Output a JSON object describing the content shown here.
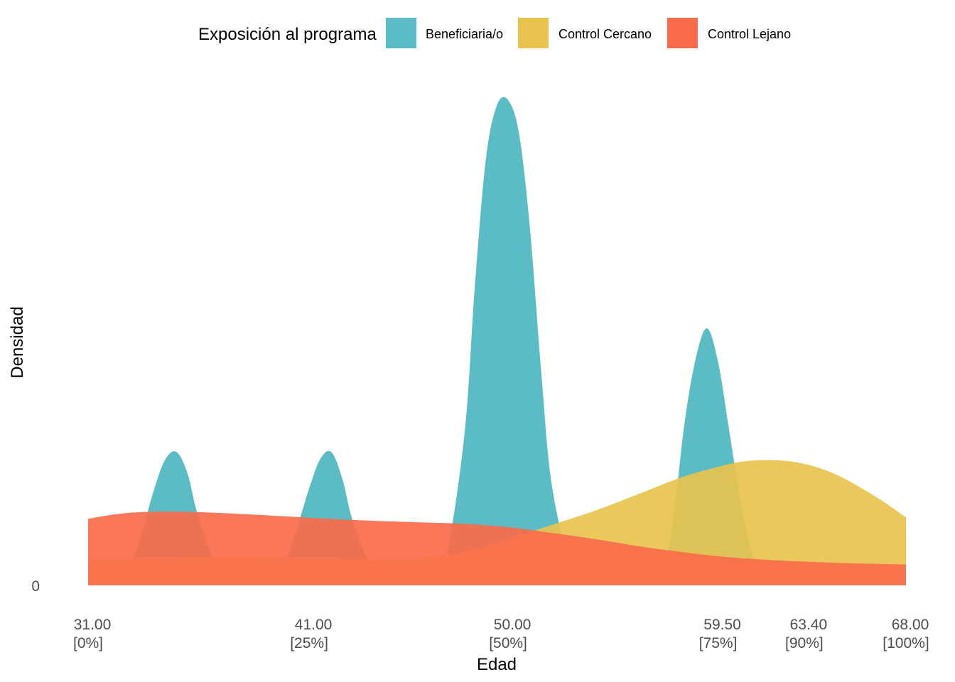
{
  "chart_data": {
    "type": "area",
    "title": "",
    "xlabel": "Edad",
    "ylabel": "Densidad",
    "legend": {
      "title": "Exposición al programa",
      "position": "top"
    },
    "xlim": [
      31.0,
      68.0
    ],
    "ylim": [
      0,
      1.0
    ],
    "y_ticks": [
      {
        "value": 0,
        "label": "0"
      }
    ],
    "x_ticks": [
      {
        "value": 31.0,
        "label": "31.00",
        "sublabel": "[0%]"
      },
      {
        "value": 41.0,
        "label": "41.00",
        "sublabel": "[25%]"
      },
      {
        "value": 50.0,
        "label": "50.00",
        "sublabel": "[50%]"
      },
      {
        "value": 59.5,
        "label": "59.50",
        "sublabel": "[75%]"
      },
      {
        "value": 63.4,
        "label": "63.40",
        "sublabel": "[90%]"
      },
      {
        "value": 68.0,
        "label": "68.00",
        "sublabel": "[100%]"
      }
    ],
    "grid": false,
    "series": [
      {
        "name": "Beneficiaria/o",
        "color": "#5BBCC5",
        "x": [
          31.0,
          32.0,
          33.0,
          34.0,
          34.5,
          35.0,
          35.5,
          36.0,
          37.0,
          38.0,
          39.0,
          40.0,
          41.0,
          41.5,
          42.0,
          42.5,
          43.0,
          44.0,
          45.0,
          46.0,
          47.0,
          48.0,
          48.5,
          49.0,
          49.5,
          50.0,
          50.5,
          51.0,
          51.5,
          52.0,
          53.0,
          54.0,
          55.0,
          56.0,
          57.0,
          57.5,
          58.0,
          58.5,
          59.0,
          59.5,
          60.0,
          60.5,
          61.0,
          61.5,
          62.0,
          63.0,
          64.0,
          65.0,
          66.0,
          67.0,
          68.0
        ],
        "values": [
          0,
          0,
          0.05,
          0.2,
          0.26,
          0.275,
          0.23,
          0.14,
          0.02,
          0,
          0.005,
          0.06,
          0.2,
          0.26,
          0.275,
          0.22,
          0.13,
          0.02,
          0,
          0,
          0.02,
          0.3,
          0.62,
          0.88,
          0.99,
          1.0,
          0.93,
          0.73,
          0.44,
          0.2,
          0.02,
          0,
          0,
          0,
          0.03,
          0.15,
          0.34,
          0.47,
          0.53,
          0.46,
          0.32,
          0.18,
          0.07,
          0.02,
          0,
          0,
          0,
          0,
          0,
          0,
          0
        ]
      },
      {
        "name": "Control Cercano",
        "color": "#E8C34D",
        "x": [
          31.0,
          32.0,
          34.0,
          36.0,
          38.0,
          40.0,
          42.0,
          43.0,
          44.0,
          46.0,
          48.0,
          50.0,
          52.0,
          54.0,
          56.0,
          58.0,
          60.0,
          61.0,
          62.0,
          63.0,
          64.0,
          65.0,
          66.0,
          67.0,
          68.0
        ],
        "values": [
          0.05,
          0.055,
          0.057,
          0.058,
          0.058,
          0.057,
          0.056,
          0.055,
          0.054,
          0.056,
          0.07,
          0.095,
          0.125,
          0.155,
          0.19,
          0.225,
          0.25,
          0.257,
          0.258,
          0.254,
          0.243,
          0.225,
          0.2,
          0.172,
          0.14
        ]
      },
      {
        "name": "Control Lejano",
        "color": "#FA6B4B",
        "x": [
          31.0,
          32.0,
          33.0,
          34.0,
          35.0,
          36.0,
          38.0,
          40.0,
          42.0,
          44.0,
          46.0,
          48.0,
          50.0,
          52.0,
          54.0,
          56.0,
          58.0,
          60.0,
          62.0,
          64.0,
          66.0,
          68.0
        ],
        "values": [
          0.137,
          0.145,
          0.15,
          0.152,
          0.152,
          0.151,
          0.147,
          0.142,
          0.137,
          0.133,
          0.13,
          0.127,
          0.12,
          0.108,
          0.095,
          0.08,
          0.068,
          0.058,
          0.052,
          0.048,
          0.045,
          0.043
        ]
      }
    ]
  }
}
